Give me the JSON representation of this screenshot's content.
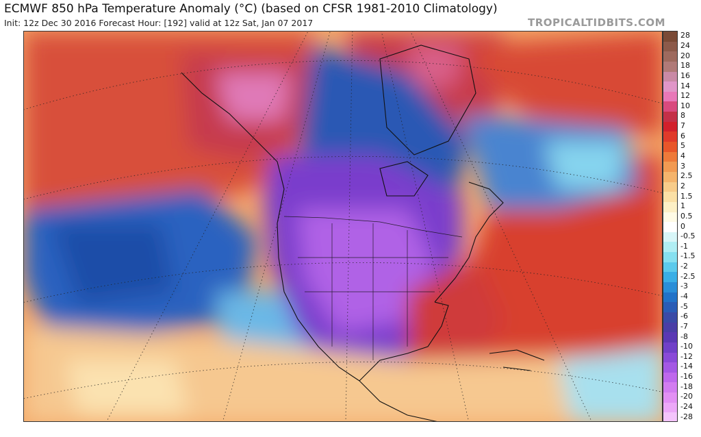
{
  "header": {
    "title": "ECMWF 850 hPa Temperature Anomaly (°C) (based on CFSR 1981-2010 Climatology)",
    "subtitle": "Init: 12z Dec 30 2016   Forecast Hour: [192]   valid at 12z Sat, Jan 07 2017",
    "brand": "TROPICALTIDBITS.COM"
  },
  "colorbar": {
    "labels": [
      "28",
      "24",
      "20",
      "18",
      "16",
      "14",
      "12",
      "10",
      "8",
      "7",
      "6",
      "5",
      "4",
      "3",
      "2.5",
      "2",
      "1.5",
      "1",
      "0.5",
      "0",
      "-0.5",
      "-1",
      "-1.5",
      "-2",
      "-2.5",
      "-3",
      "-4",
      "-5",
      "-6",
      "-7",
      "-8",
      "-10",
      "-12",
      "-14",
      "-16",
      "-18",
      "-20",
      "-24",
      "-28"
    ],
    "colors": [
      "#7a4a36",
      "#8c5a4a",
      "#9e6a5e",
      "#b07a78",
      "#c98aa6",
      "#e096c8",
      "#e878b8",
      "#d94a7e",
      "#c43048",
      "#d2202c",
      "#e03a2a",
      "#e8562a",
      "#ee7a3a",
      "#f29a52",
      "#f5b46c",
      "#f8cc8a",
      "#fbe0a6",
      "#fdf0c6",
      "#fffbe6",
      "#ffffff",
      "#d8f6f8",
      "#b0eef4",
      "#86e0f0",
      "#5ccaec",
      "#3aaee6",
      "#2a8ed8",
      "#2272c8",
      "#2a5cb6",
      "#3a4aa6",
      "#4a3ea6",
      "#5a38b4",
      "#7040c8",
      "#8a4ad8",
      "#a458e4",
      "#be68ec",
      "#d27cf0",
      "#e290f4",
      "#eca8f8",
      "#f4c4fc"
    ]
  }
}
